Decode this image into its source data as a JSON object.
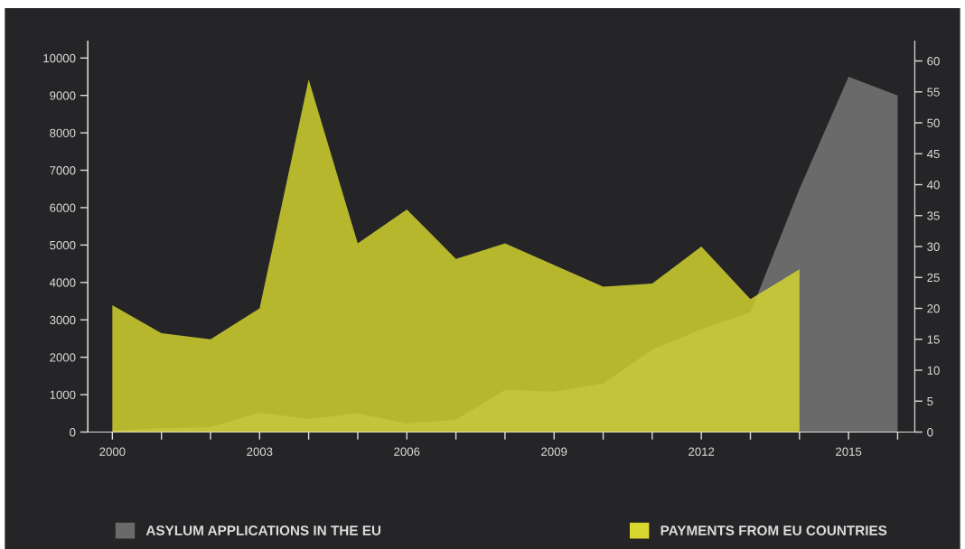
{
  "chart_data": {
    "type": "area",
    "x": [
      2000,
      2001,
      2002,
      2003,
      2004,
      2005,
      2006,
      2007,
      2008,
      2009,
      2010,
      2011,
      2012,
      2013,
      2014,
      2015,
      2016
    ],
    "series": [
      {
        "name": "ASYLUM APPLICATIONS IN THE EU",
        "color": "#6a6a6a",
        "values": [
          50,
          100,
          130,
          520,
          350,
          500,
          230,
          330,
          1130,
          1080,
          1300,
          2200,
          2750,
          3200,
          6500,
          9500,
          9000
        ]
      },
      {
        "name": "PAYMENTS FROM EU COUNTRIES",
        "color": "#d8d830",
        "axis": "y2",
        "x": [
          2000,
          2001,
          2002,
          2003,
          2004,
          2005,
          2006,
          2007,
          2008,
          2009,
          2010,
          2011,
          2012,
          2013,
          2014
        ],
        "values": [
          20.5,
          16,
          15,
          20,
          57,
          30.5,
          36,
          28,
          30.5,
          27,
          23.5,
          24,
          30,
          21.5,
          26.3
        ]
      }
    ],
    "xlim": [
      1999.5,
      2016.35
    ],
    "xticks": [
      2000,
      {
        "value": 2001,
        "label": null
      },
      {
        "value": 2002,
        "label": null
      },
      2003,
      {
        "value": 2004,
        "label": null
      },
      {
        "value": 2005,
        "label": null
      },
      2006,
      {
        "value": 2007,
        "label": null
      },
      {
        "value": 2008,
        "label": null
      },
      2009,
      {
        "value": 2010,
        "label": null
      },
      {
        "value": 2011,
        "label": null
      },
      2012,
      {
        "value": 2013,
        "label": null
      },
      {
        "value": 2014,
        "label": null
      },
      2015,
      {
        "value": 2016,
        "label": null
      }
    ],
    "ylim": [
      0,
      10450
    ],
    "yticks": [
      0,
      1000,
      2000,
      3000,
      4000,
      5000,
      6000,
      7000,
      8000,
      9000,
      10000
    ],
    "y2lim": [
      0,
      63.2
    ],
    "y2ticks": [
      0,
      5,
      10,
      15,
      20,
      25,
      30,
      35,
      40,
      45,
      50,
      55,
      60
    ],
    "grid": false,
    "legend": "bottom"
  }
}
